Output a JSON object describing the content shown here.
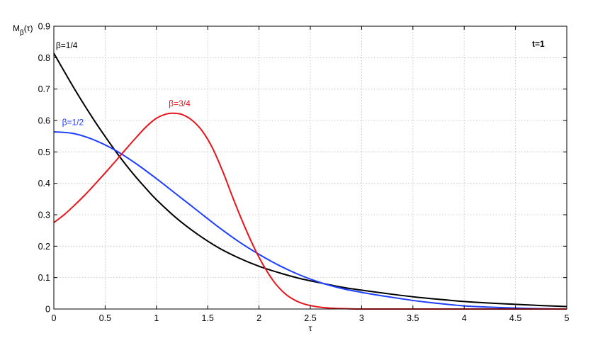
{
  "chart_data": {
    "type": "line",
    "ylabel": "M",
    "ylabel_sub": "β",
    "ylabel_suffix": "(τ)",
    "xlabel": "τ",
    "annotation": "t=1",
    "xlim": [
      0,
      5
    ],
    "ylim": [
      0,
      0.9
    ],
    "xticks": [
      0,
      0.5,
      1,
      1.5,
      2,
      2.5,
      3,
      3.5,
      4,
      4.5,
      5
    ],
    "xtick_labels": [
      "0",
      "0.5",
      "1",
      "1.5",
      "2",
      "2.5",
      "3",
      "3.5",
      "4",
      "4.5",
      "5"
    ],
    "yticks": [
      0,
      0.1,
      0.2,
      0.3,
      0.4,
      0.5,
      0.6,
      0.7,
      0.8,
      0.9
    ],
    "ytick_labels": [
      "0",
      "0.1",
      "0.2",
      "0.3",
      "0.4",
      "0.5",
      "0.6",
      "0.7",
      "0.8",
      "0.9"
    ],
    "grid": true,
    "series": [
      {
        "name": "β=1/4",
        "color": "#000000",
        "label_at": [
          0.02,
          0.83
        ],
        "x": [
          0,
          0.1,
          0.2,
          0.3,
          0.4,
          0.5,
          0.6,
          0.7,
          0.8,
          0.9,
          1.0,
          1.2,
          1.4,
          1.6,
          1.8,
          2.0,
          2.2,
          2.4,
          2.6,
          2.8,
          3.0,
          3.25,
          3.5,
          3.75,
          4.0,
          4.25,
          4.5,
          4.75,
          5.0
        ],
        "values": [
          0.814,
          0.757,
          0.701,
          0.648,
          0.597,
          0.549,
          0.503,
          0.46,
          0.42,
          0.383,
          0.348,
          0.288,
          0.238,
          0.196,
          0.163,
          0.136,
          0.115,
          0.097,
          0.083,
          0.07,
          0.06,
          0.049,
          0.039,
          0.031,
          0.024,
          0.019,
          0.015,
          0.011,
          0.008
        ]
      },
      {
        "name": "β=1/2",
        "color": "#1f3fff",
        "label_at": [
          0.08,
          0.585
        ],
        "x": [
          0,
          0.2,
          0.4,
          0.6,
          0.8,
          1.0,
          1.2,
          1.4,
          1.6,
          1.8,
          2.0,
          2.2,
          2.4,
          2.6,
          2.8,
          3.0,
          3.2,
          3.4,
          3.6,
          3.8,
          4.0,
          4.25,
          4.5,
          4.75,
          5.0
        ],
        "values": [
          0.564,
          0.558,
          0.537,
          0.505,
          0.463,
          0.415,
          0.364,
          0.313,
          0.262,
          0.215,
          0.174,
          0.138,
          0.108,
          0.084,
          0.066,
          0.053,
          0.042,
          0.032,
          0.023,
          0.016,
          0.01,
          0.006,
          0.003,
          0.001,
          0.0
        ]
      },
      {
        "name": "β=3/4",
        "color": "#e8141b",
        "label_at": [
          1.12,
          0.645
        ],
        "x": [
          0,
          0.1,
          0.2,
          0.3,
          0.4,
          0.5,
          0.6,
          0.7,
          0.8,
          0.9,
          1.0,
          1.1,
          1.17,
          1.25,
          1.35,
          1.45,
          1.55,
          1.65,
          1.75,
          1.85,
          1.95,
          2.05,
          2.15,
          2.25,
          2.35,
          2.45,
          2.55,
          2.65,
          2.75,
          2.85,
          2.95,
          3.0,
          3.5,
          4.0,
          4.5,
          5.0
        ],
        "values": [
          0.275,
          0.3,
          0.33,
          0.362,
          0.397,
          0.433,
          0.47,
          0.508,
          0.545,
          0.58,
          0.607,
          0.621,
          0.623,
          0.619,
          0.6,
          0.565,
          0.51,
          0.435,
          0.35,
          0.27,
          0.197,
          0.135,
          0.085,
          0.05,
          0.028,
          0.015,
          0.008,
          0.004,
          0.002,
          0.001,
          0.0,
          0.0,
          0.0,
          0.0,
          0.0,
          0.0
        ]
      }
    ]
  }
}
